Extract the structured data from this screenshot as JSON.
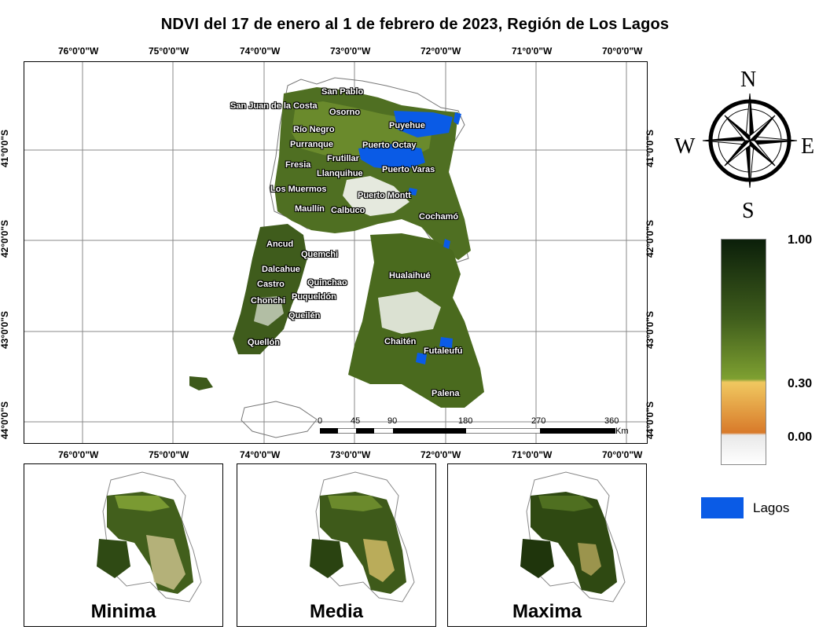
{
  "title": "NDVI del 17 de enero al 1 de febrero de 2023, Región de Los Lagos",
  "longitude_labels": [
    "76°0'0\"W",
    "75°0'0\"W",
    "74°0'0\"W",
    "73°0'0\"W",
    "72°0'0\"W",
    "71°0'0\"W",
    "70°0'0\"W"
  ],
  "latitude_labels": [
    "41°0'0\"S",
    "42°0'0\"S",
    "43°0'0\"S",
    "44°0'0\"S"
  ],
  "places": [
    "San Pablo",
    "San Juan de la Costa",
    "Osorno",
    "Puyehue",
    "Río Negro",
    "Purranque",
    "Puerto Octay",
    "Frutillar",
    "Fresia",
    "Llanquihue",
    "Puerto Varas",
    "Los Muermos",
    "Puerto Montt",
    "Maullín",
    "Calbuco",
    "Cochamó",
    "Ancud",
    "Quemchi",
    "Dalcahue",
    "Castro",
    "Quinchao",
    "Hualaihué",
    "Chonchi",
    "Puqueldón",
    "Queilén",
    "Quellón",
    "Chaitén",
    "Futaleufú",
    "Palena"
  ],
  "scale": {
    "ticks": [
      "0",
      "45",
      "90",
      "180",
      "270",
      "360"
    ],
    "unit": "Km"
  },
  "compass": {
    "north": "N",
    "south": "S",
    "east": "E",
    "west": "W"
  },
  "legend": {
    "values": [
      "1.00",
      "0.30",
      "0.00"
    ],
    "lake_label": "Lagos",
    "colors": {
      "high": "#0b1f0a",
      "mid": "#7ea031",
      "low": "#f0c860",
      "zero": "#d87a2a",
      "lake": "#0a5be6"
    }
  },
  "insets": [
    "Minima",
    "Media",
    "Maxima"
  ]
}
